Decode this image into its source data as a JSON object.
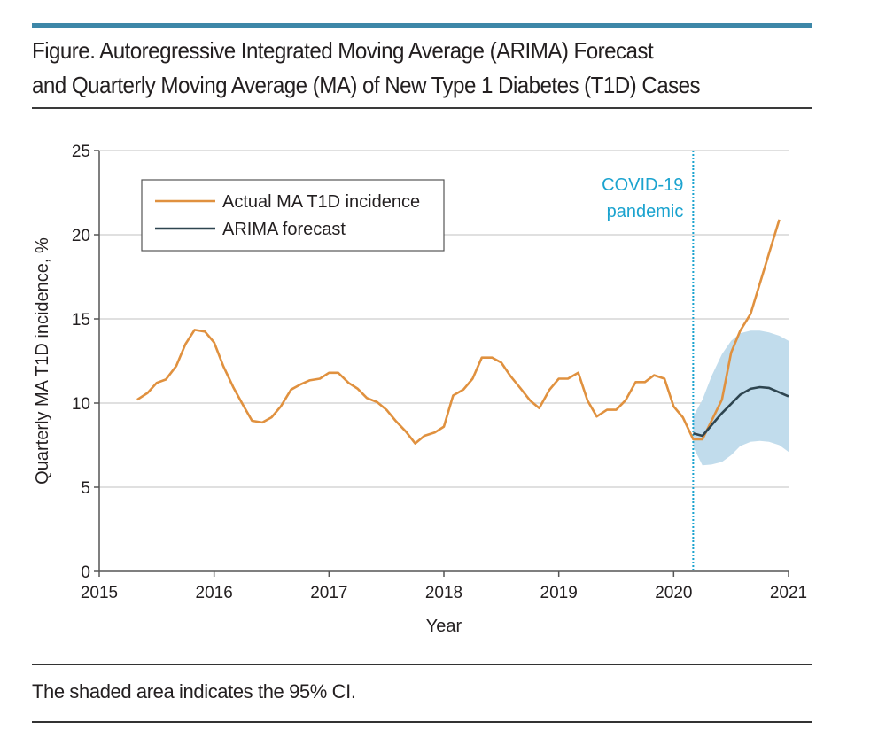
{
  "figure": {
    "title_line1": "Figure. Autoregressive Integrated Moving Average (ARIMA) Forecast",
    "title_line2": "and Quarterly Moving Average (MA) of New Type 1 Diabetes (T1D) Cases",
    "caption": "The shaded area indicates the 95% CI.",
    "accent_color": "#3d87a8"
  },
  "chart_data": {
    "type": "line",
    "title": "",
    "xlabel": "Year",
    "ylabel": "Quarterly MA T1D incidence, %",
    "xlim": [
      2015,
      2021
    ],
    "ylim": [
      0,
      25
    ],
    "xticks": [
      "2015",
      "2016",
      "2017",
      "2018",
      "2019",
      "2020",
      "2021"
    ],
    "yticks": [
      "0",
      "5",
      "10",
      "15",
      "20",
      "25"
    ],
    "grid": "horizontal",
    "legend_position": "top-left",
    "legend": [
      "Actual MA T1D incidence",
      "ARIMA forecast"
    ],
    "annotation": {
      "label_line1": "COVID-19",
      "label_line2": "pandemic",
      "x": 2020.17,
      "color": "#1ba3cf"
    },
    "series": [
      {
        "name": "Actual MA T1D incidence",
        "color": "#e0913f",
        "x": [
          2015.33,
          2015.42,
          2015.5,
          2015.58,
          2015.67,
          2015.75,
          2015.83,
          2015.92,
          2016.0,
          2016.08,
          2016.17,
          2016.25,
          2016.33,
          2016.42,
          2016.5,
          2016.58,
          2016.67,
          2016.75,
          2016.83,
          2016.92,
          2017.0,
          2017.08,
          2017.17,
          2017.25,
          2017.33,
          2017.42,
          2017.5,
          2017.58,
          2017.67,
          2017.75,
          2017.83,
          2017.92,
          2018.0,
          2018.08,
          2018.17,
          2018.25,
          2018.33,
          2018.42,
          2018.5,
          2018.58,
          2018.67,
          2018.75,
          2018.83,
          2018.92,
          2019.0,
          2019.08,
          2019.17,
          2019.25,
          2019.33,
          2019.42,
          2019.5,
          2019.58,
          2019.67,
          2019.75,
          2019.83,
          2019.92,
          2020.0,
          2020.08,
          2020.17,
          2020.25,
          2020.42,
          2020.5,
          2020.58,
          2020.67,
          2020.92
        ],
        "values": [
          10.2,
          10.6,
          11.2,
          11.4,
          12.2,
          13.5,
          14.35,
          14.25,
          13.6,
          12.2,
          10.9,
          9.9,
          8.95,
          8.85,
          9.15,
          9.8,
          10.8,
          11.1,
          11.35,
          11.45,
          11.8,
          11.8,
          11.2,
          10.85,
          10.3,
          10.05,
          9.6,
          8.95,
          8.3,
          7.6,
          8.05,
          8.25,
          8.6,
          10.45,
          10.8,
          11.45,
          12.7,
          12.7,
          12.4,
          11.6,
          10.85,
          10.15,
          9.7,
          10.8,
          11.45,
          11.45,
          11.8,
          10.15,
          9.2,
          9.6,
          9.6,
          10.15,
          11.25,
          11.25,
          11.65,
          11.45,
          9.8,
          9.15,
          7.85,
          7.85,
          10.2,
          13.0,
          14.3,
          15.3,
          20.9
        ]
      },
      {
        "name": "ARIMA forecast",
        "color": "#2e4550",
        "x": [
          2020.17,
          2020.25,
          2020.42,
          2020.58,
          2020.67,
          2020.75,
          2020.83,
          2021.0
        ],
        "values": [
          8.2,
          8.05,
          9.4,
          10.5,
          10.85,
          10.95,
          10.9,
          10.4
        ]
      }
    ],
    "confidence_interval": {
      "name": "95% CI",
      "color": "#c1dcec",
      "x": [
        2020.17,
        2020.25,
        2020.33,
        2020.42,
        2020.5,
        2020.58,
        2020.67,
        2020.75,
        2020.83,
        2020.92,
        2021.0
      ],
      "lower": [
        7.4,
        6.3,
        6.35,
        6.5,
        6.9,
        7.45,
        7.7,
        7.75,
        7.7,
        7.5,
        7.1
      ],
      "upper": [
        9.2,
        10.2,
        11.6,
        12.9,
        13.7,
        14.15,
        14.3,
        14.3,
        14.2,
        14.0,
        13.7
      ]
    }
  }
}
